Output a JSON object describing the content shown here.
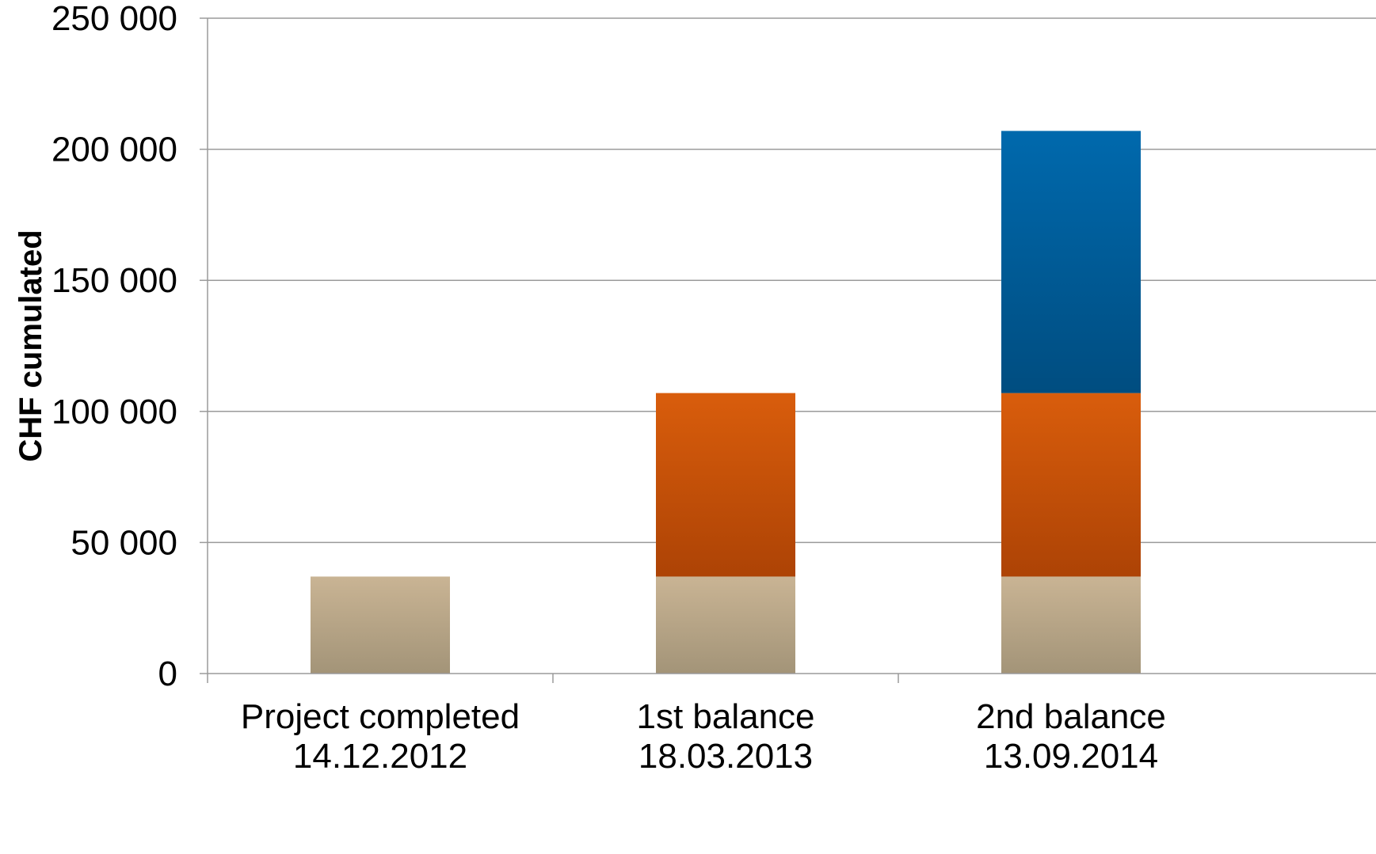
{
  "chart_data": {
    "type": "bar",
    "stacked": true,
    "categories": [
      [
        "Project completed",
        "14.12.2012"
      ],
      [
        "1st balance",
        "18.03.2013"
      ],
      [
        "2nd balance",
        "13.09.2014"
      ]
    ],
    "series": [
      {
        "color": "#b8a788",
        "values": [
          37000,
          37000,
          37000
        ]
      },
      {
        "color": "#c8540a",
        "values": [
          0,
          70000,
          70000
        ]
      },
      {
        "color": "#00609f",
        "values": [
          0,
          0,
          100000
        ]
      }
    ],
    "ylabel": "CHF cumulated",
    "ylim": [
      0,
      250000
    ],
    "yticks": [
      0,
      50000,
      100000,
      150000,
      200000,
      250000
    ],
    "ytick_labels": [
      "0",
      "50 000",
      "100 000",
      "150 000",
      "200 000",
      "250 000"
    ],
    "grid": true,
    "legend": "none"
  }
}
